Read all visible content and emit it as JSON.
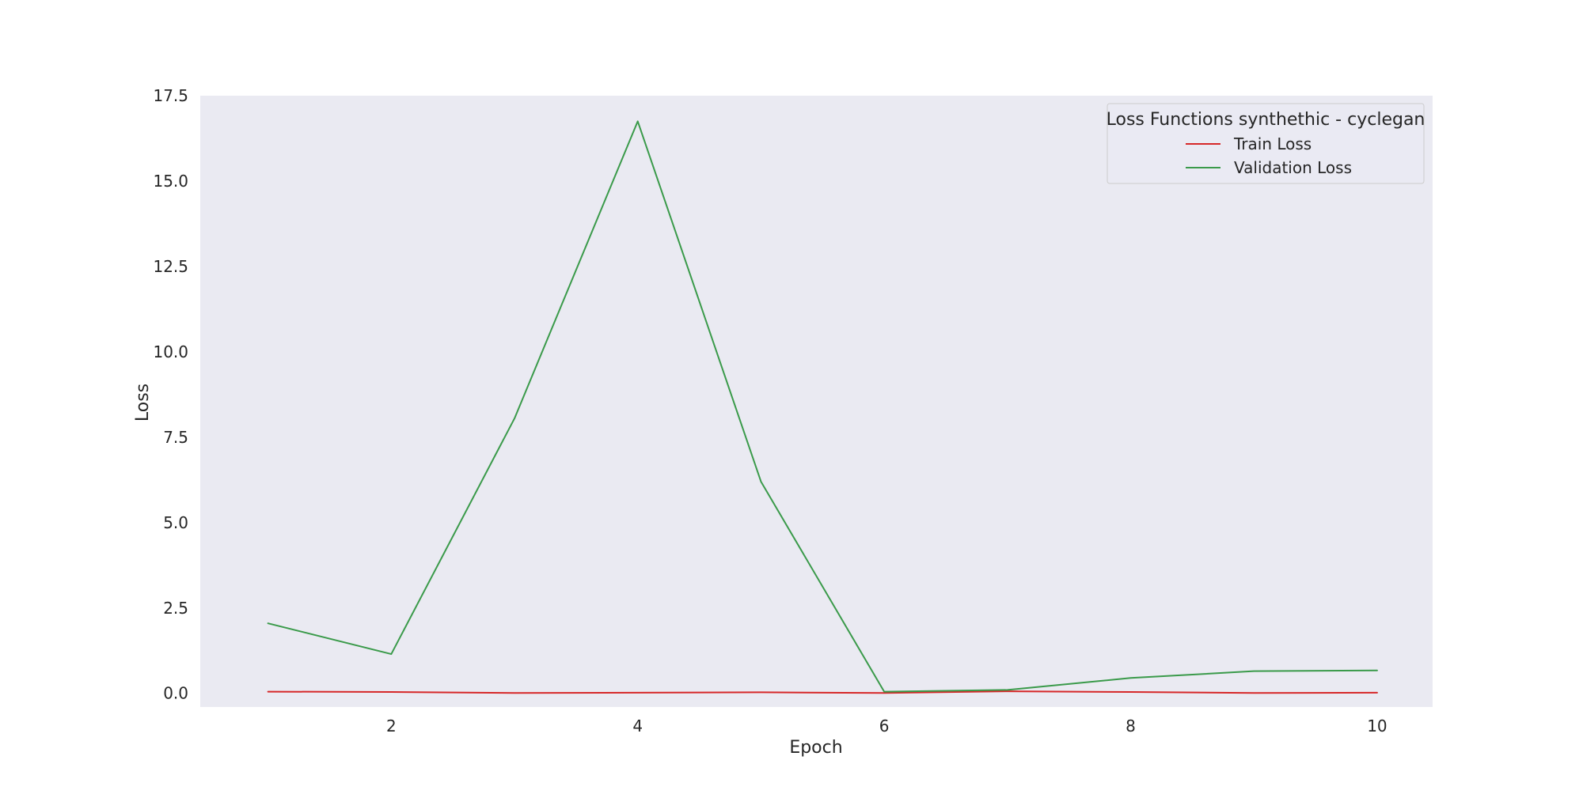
{
  "chart_data": {
    "type": "line",
    "title": "",
    "xlabel": "Epoch",
    "ylabel": "Loss",
    "x": [
      1,
      2,
      3,
      4,
      5,
      6,
      7,
      8,
      9,
      10
    ],
    "xlim": [
      0.45,
      10.45
    ],
    "ylim": [
      -0.4,
      17.5
    ],
    "xticks": [
      2,
      4,
      6,
      8,
      10
    ],
    "xtick_labels": [
      "2",
      "4",
      "6",
      "8",
      "10"
    ],
    "yticks": [
      0.0,
      2.5,
      5.0,
      7.5,
      10.0,
      12.5,
      15.0,
      17.5
    ],
    "ytick_labels": [
      "0.0",
      "2.5",
      "5.0",
      "7.5",
      "10.0",
      "12.5",
      "15.0",
      "17.5"
    ],
    "grid": false,
    "legend": {
      "title": "Loss Functions synthethic - cyclegan",
      "placement": "top-right"
    },
    "series": [
      {
        "name": "Train Loss",
        "color": "#d62728",
        "values": [
          0.05,
          0.04,
          0.01,
          0.02,
          0.03,
          0.01,
          0.06,
          0.04,
          0.01,
          0.02
        ]
      },
      {
        "name": "Validation Loss",
        "color": "#3a9a4a",
        "values": [
          2.05,
          1.15,
          8.05,
          16.75,
          6.2,
          0.05,
          0.1,
          0.45,
          0.65,
          0.67
        ]
      }
    ]
  }
}
